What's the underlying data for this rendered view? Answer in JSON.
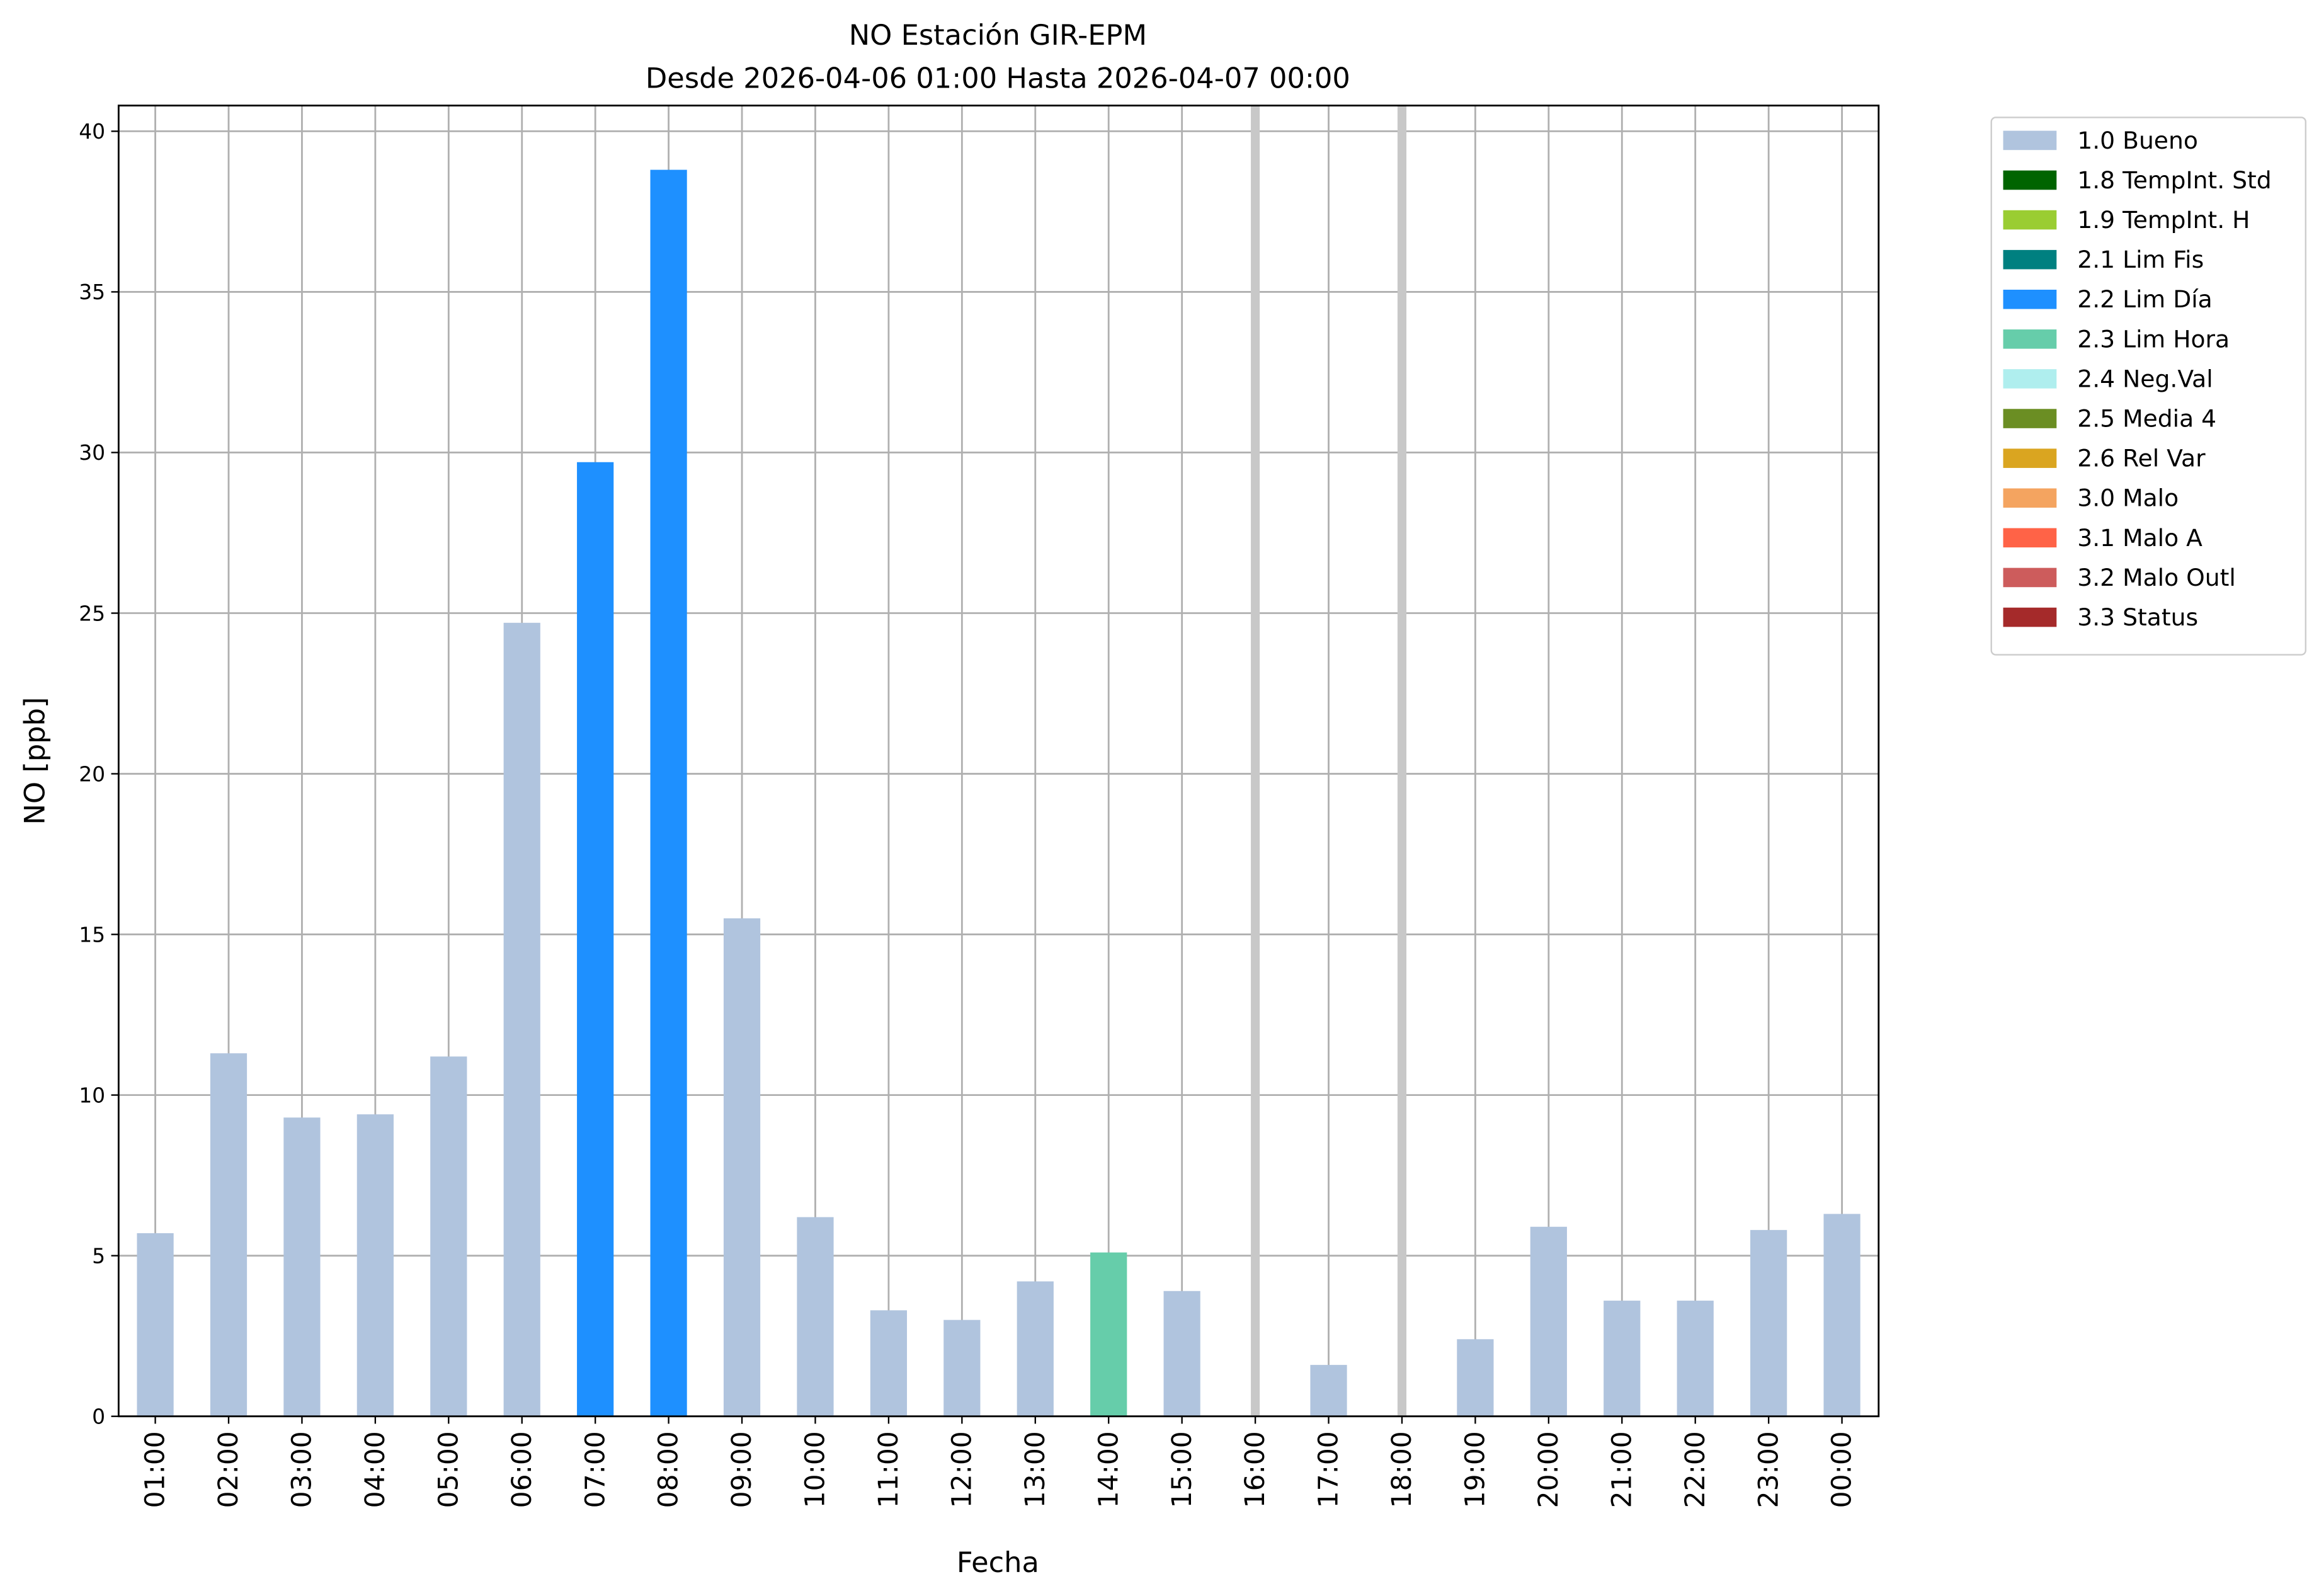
{
  "chart_data": {
    "type": "bar",
    "title": "NO Estación GIR-EPM",
    "subtitle": "Desde 2026-04-06 01:00 Hasta 2026-04-07 00:00",
    "x_label": "Fecha",
    "y_label": "NO [ppb]",
    "categories": [
      "01:00",
      "02:00",
      "03:00",
      "04:00",
      "05:00",
      "06:00",
      "07:00",
      "08:00",
      "09:00",
      "10:00",
      "11:00",
      "12:00",
      "13:00",
      "14:00",
      "15:00",
      "16:00",
      "17:00",
      "18:00",
      "19:00",
      "20:00",
      "21:00",
      "22:00",
      "23:00",
      "00:00"
    ],
    "series": [
      {
        "name": "1.0 Bueno",
        "color": "#b0c4de",
        "values": [
          5.7,
          11.3,
          9.3,
          9.4,
          11.2,
          24.7,
          null,
          null,
          15.5,
          6.2,
          3.3,
          3,
          4.2,
          null,
          3.9,
          null,
          1.6,
          null,
          2.4,
          5.9,
          3.6,
          3.6,
          5.8,
          6.3
        ]
      },
      {
        "name": "1.8 TempInt. Std",
        "color": "#006400",
        "values": [
          null,
          null,
          null,
          null,
          null,
          null,
          null,
          null,
          null,
          null,
          null,
          null,
          null,
          null,
          null,
          null,
          null,
          null,
          null,
          null,
          null,
          null,
          null,
          null
        ]
      },
      {
        "name": "1.9 TempInt. H",
        "color": "#9acd32",
        "values": [
          null,
          null,
          null,
          null,
          null,
          null,
          null,
          null,
          null,
          null,
          null,
          null,
          null,
          null,
          null,
          null,
          null,
          null,
          null,
          null,
          null,
          null,
          null,
          null
        ]
      },
      {
        "name": "2.1 Lim Fis",
        "color": "#008080",
        "values": [
          null,
          null,
          null,
          null,
          null,
          null,
          null,
          null,
          null,
          null,
          null,
          null,
          null,
          null,
          null,
          null,
          null,
          null,
          null,
          null,
          null,
          null,
          null,
          null
        ]
      },
      {
        "name": "2.2 Lim Día",
        "color": "#1e90ff",
        "values": [
          null,
          null,
          null,
          null,
          null,
          null,
          29.7,
          38.8,
          null,
          null,
          null,
          null,
          null,
          null,
          null,
          null,
          null,
          null,
          null,
          null,
          null,
          null,
          null,
          null
        ]
      },
      {
        "name": "2.3 Lim Hora",
        "color": "#66cdaa",
        "values": [
          null,
          null,
          null,
          null,
          null,
          null,
          null,
          null,
          null,
          null,
          null,
          null,
          null,
          5.1,
          null,
          null,
          null,
          null,
          null,
          null,
          null,
          null,
          null,
          null
        ]
      },
      {
        "name": "2.4 Neg.Val",
        "color": "#afeeee",
        "values": [
          null,
          null,
          null,
          null,
          null,
          null,
          null,
          null,
          null,
          null,
          null,
          null,
          null,
          null,
          null,
          null,
          null,
          null,
          null,
          null,
          null,
          null,
          null,
          null
        ]
      },
      {
        "name": "2.5 Media 4",
        "color": "#6b8e23",
        "values": [
          null,
          null,
          null,
          null,
          null,
          null,
          null,
          null,
          null,
          null,
          null,
          null,
          null,
          null,
          null,
          null,
          null,
          null,
          null,
          null,
          null,
          null,
          null,
          null
        ]
      },
      {
        "name": "2.6 Rel Var",
        "color": "#daa520",
        "values": [
          null,
          null,
          null,
          null,
          null,
          null,
          null,
          null,
          null,
          null,
          null,
          null,
          null,
          null,
          null,
          null,
          null,
          null,
          null,
          null,
          null,
          null,
          null,
          null
        ]
      },
      {
        "name": "3.0 Malo",
        "color": "#f4a460",
        "values": [
          null,
          null,
          null,
          null,
          null,
          null,
          null,
          null,
          null,
          null,
          null,
          null,
          null,
          null,
          null,
          null,
          null,
          null,
          null,
          null,
          null,
          null,
          null,
          null
        ]
      },
      {
        "name": "3.1 Malo A",
        "color": "#ff6347",
        "values": [
          null,
          null,
          null,
          null,
          null,
          null,
          null,
          null,
          null,
          null,
          null,
          null,
          null,
          null,
          null,
          null,
          null,
          null,
          null,
          null,
          null,
          null,
          null,
          null
        ]
      },
      {
        "name": "3.2 Malo Outl",
        "color": "#cd5c5c",
        "values": [
          null,
          null,
          null,
          null,
          null,
          null,
          null,
          null,
          null,
          null,
          null,
          null,
          null,
          null,
          null,
          null,
          null,
          null,
          null,
          null,
          null,
          null,
          null,
          null
        ]
      },
      {
        "name": "3.3 Status",
        "color": "#a52a2a",
        "values": [
          null,
          null,
          null,
          null,
          null,
          null,
          null,
          null,
          null,
          null,
          null,
          null,
          null,
          null,
          null,
          null,
          null,
          null,
          null,
          null,
          null,
          null,
          null,
          null
        ]
      }
    ],
    "ylim": [
      0,
      40.8
    ],
    "yticks": [
      0,
      5,
      10,
      15,
      20,
      25,
      30,
      35,
      40
    ],
    "grid": true,
    "legend": "outside-upper-right"
  }
}
